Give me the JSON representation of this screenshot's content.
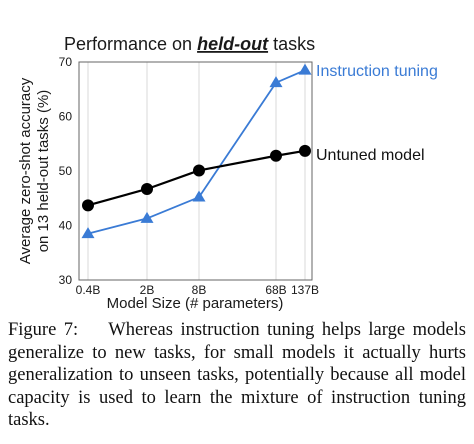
{
  "chart_data": {
    "type": "line",
    "title_prefix": "Performance on ",
    "title_emphasis": "held-out",
    "title_suffix": " tasks",
    "xlabel": "Model Size (# parameters)",
    "ylabel_line1": "Average zero-shot accuracy",
    "ylabel_line2": "on 13 held-out tasks (%)",
    "categories": [
      "0.4B",
      "2B",
      "8B",
      "68B",
      "137B"
    ],
    "yticks": [
      30,
      40,
      50,
      60,
      70
    ],
    "ylim": [
      30,
      70
    ],
    "grid": "vertical lines only",
    "series": [
      {
        "name": "Instruction tuning",
        "color": "#3a7bd5",
        "marker": "triangle",
        "values": [
          38.5,
          41.3,
          45.2,
          66.2,
          68.5
        ]
      },
      {
        "name": "Untuned model",
        "color": "#000000",
        "marker": "circle",
        "values": [
          43.7,
          46.7,
          50.1,
          52.8,
          53.7
        ]
      }
    ]
  },
  "caption": {
    "label": "Figure 7:",
    "text": "Whereas instruction tuning helps large models generalize to new tasks, for small models it actually hurts generalization to unseen tasks, potentially because all model capacity is used to learn the mixture of instruction tuning tasks."
  }
}
